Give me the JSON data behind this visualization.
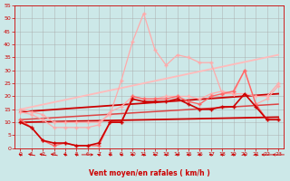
{
  "background_color": "#cce8e8",
  "grid_color": "#aaaaaa",
  "xlabel": "Vent moyen/en rafales ( km/h )",
  "xlabel_color": "#cc0000",
  "tick_color": "#cc0000",
  "xlim": [
    -0.5,
    23.5
  ],
  "ylim": [
    0,
    55
  ],
  "yticks": [
    0,
    5,
    10,
    15,
    20,
    25,
    30,
    35,
    40,
    45,
    50,
    55
  ],
  "xticks": [
    0,
    1,
    2,
    3,
    4,
    5,
    6,
    7,
    8,
    9,
    10,
    11,
    12,
    13,
    14,
    15,
    16,
    17,
    18,
    19,
    20,
    21,
    22,
    23
  ],
  "lines": [
    {
      "x": [
        0,
        1,
        2,
        3,
        4,
        5,
        6,
        7,
        8,
        9,
        10,
        11,
        12,
        13,
        14,
        15,
        16,
        17,
        18,
        19,
        20,
        21,
        22,
        23
      ],
      "y": [
        15,
        14,
        13,
        10,
        10,
        10,
        10,
        10,
        13,
        26,
        41,
        52,
        38,
        32,
        36,
        35,
        33,
        33,
        21,
        21,
        30,
        17,
        19,
        24
      ],
      "color": "#ffaaaa",
      "lw": 0.9,
      "marker": "+",
      "ms": 3.0,
      "zorder": 3
    },
    {
      "x": [
        0,
        23
      ],
      "y": [
        15,
        36
      ],
      "color": "#ffbbbb",
      "lw": 1.3,
      "marker": null,
      "ms": 0,
      "zorder": 2
    },
    {
      "x": [
        0,
        1,
        2,
        3,
        4,
        5,
        6,
        7,
        8,
        9,
        10,
        11,
        12,
        13,
        14,
        15,
        16,
        17,
        18,
        19,
        20,
        21,
        22,
        23
      ],
      "y": [
        14,
        13,
        11,
        8,
        8,
        8,
        8,
        9,
        14,
        16,
        20,
        19,
        19,
        20,
        20,
        20,
        19,
        21,
        22,
        21,
        21,
        20,
        20,
        25
      ],
      "color": "#ffaaaa",
      "lw": 0.9,
      "marker": "+",
      "ms": 3.0,
      "zorder": 3
    },
    {
      "x": [
        0,
        1,
        2,
        3,
        4,
        5,
        6,
        7,
        8,
        9,
        10,
        11,
        12,
        13,
        14,
        15,
        16,
        17,
        18,
        19,
        20,
        21,
        22,
        23
      ],
      "y": [
        11,
        8,
        3,
        1,
        2,
        1,
        1,
        1,
        10,
        10,
        20,
        19,
        19,
        19,
        20,
        18,
        17,
        20,
        21,
        22,
        30,
        17,
        11,
        11
      ],
      "color": "#ff6666",
      "lw": 1.0,
      "marker": "+",
      "ms": 3.0,
      "zorder": 4
    },
    {
      "x": [
        0,
        1,
        2,
        3,
        4,
        5,
        6,
        7,
        8,
        9,
        10,
        11,
        12,
        13,
        14,
        15,
        16,
        17,
        18,
        19,
        20,
        21,
        22,
        23
      ],
      "y": [
        10,
        8,
        3,
        2,
        2,
        1,
        1,
        2,
        10,
        10,
        19,
        18,
        18,
        18,
        19,
        17,
        15,
        15,
        16,
        16,
        21,
        16,
        11,
        11
      ],
      "color": "#cc0000",
      "lw": 1.2,
      "marker": "+",
      "ms": 3.0,
      "zorder": 5
    },
    {
      "x": [
        0,
        23
      ],
      "y": [
        10,
        12
      ],
      "color": "#cc0000",
      "lw": 1.3,
      "marker": null,
      "ms": 0,
      "zorder": 2
    },
    {
      "x": [
        0,
        23
      ],
      "y": [
        14,
        21
      ],
      "color": "#cc0000",
      "lw": 1.3,
      "marker": null,
      "ms": 0,
      "zorder": 2
    },
    {
      "x": [
        0,
        23
      ],
      "y": [
        11,
        17
      ],
      "color": "#dd4444",
      "lw": 1.1,
      "marker": null,
      "ms": 0,
      "zorder": 2
    }
  ],
  "wind_arrows": {
    "x": [
      0,
      1,
      2,
      3,
      4,
      5,
      6,
      7,
      8,
      9,
      10,
      11,
      12,
      13,
      14,
      15,
      16,
      17,
      18,
      19,
      20,
      21,
      22,
      23
    ],
    "angles_deg": [
      210,
      225,
      225,
      225,
      210,
      210,
      90,
      210,
      210,
      210,
      210,
      210,
      210,
      210,
      210,
      210,
      210,
      210,
      210,
      210,
      210,
      210,
      270,
      270
    ]
  }
}
